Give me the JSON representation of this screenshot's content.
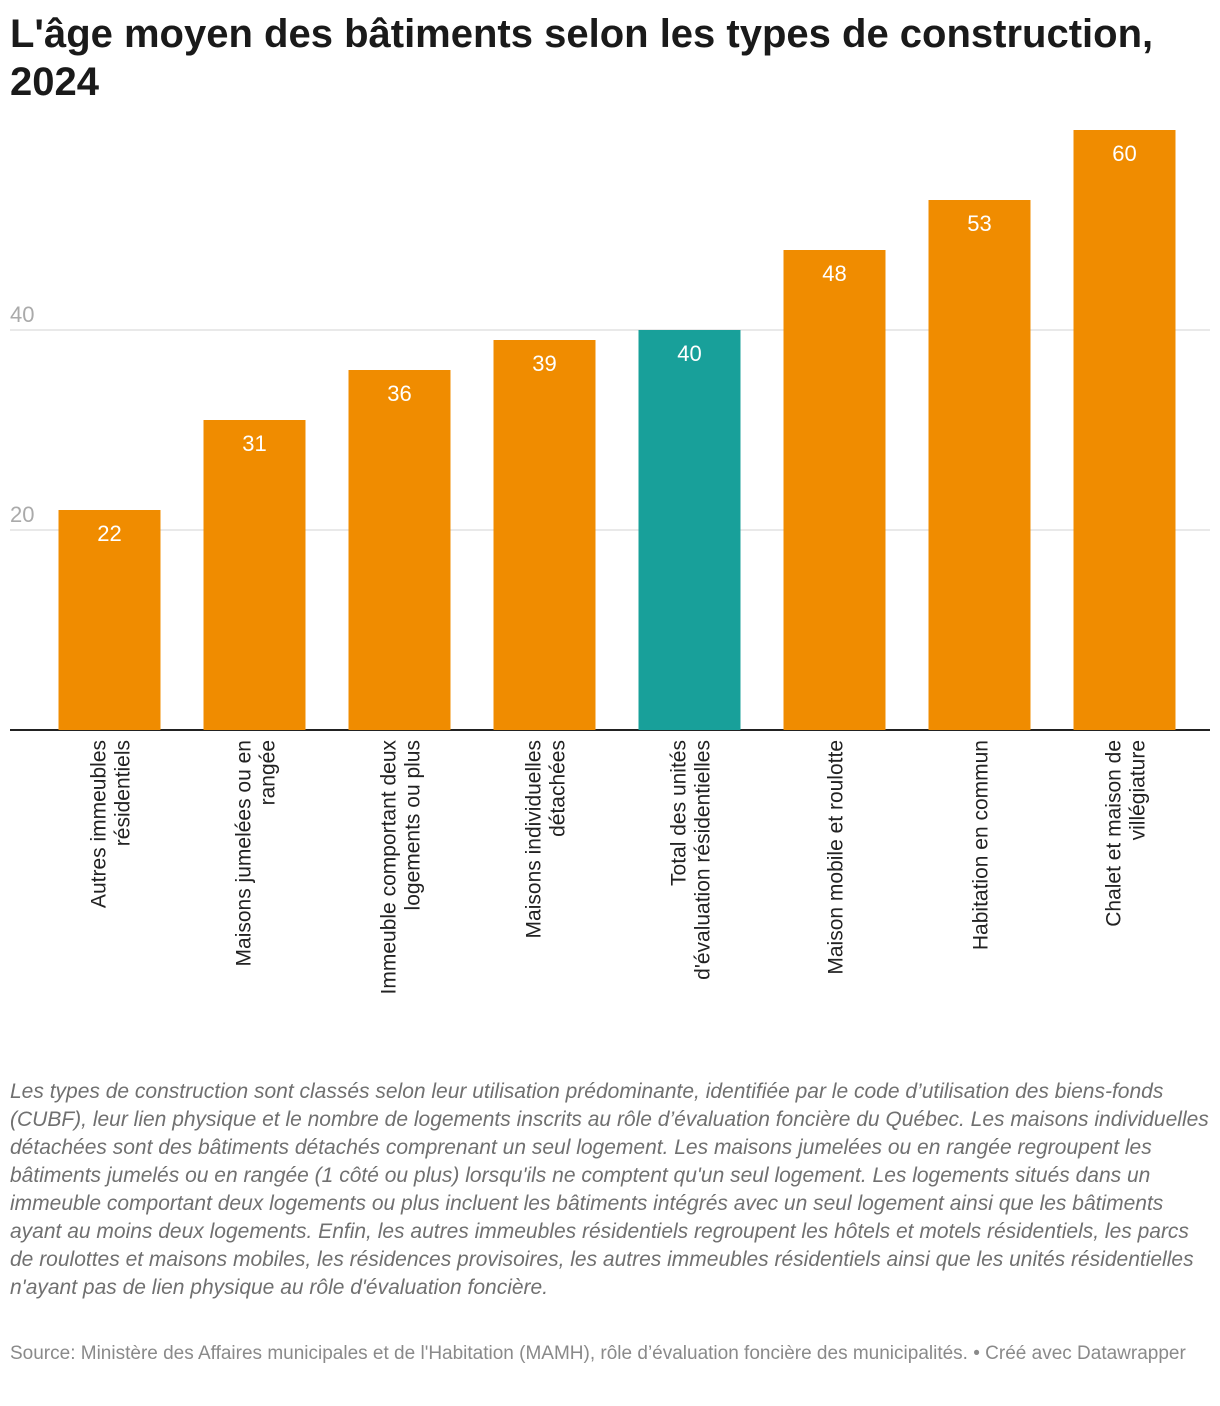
{
  "title": "L'âge moyen des bâtiments selon les types de construction, 2024",
  "colors": {
    "default_bar": "#f08c00",
    "highlight_bar": "#18a09a",
    "grid": "#e2e2e2",
    "axis": "#222222"
  },
  "chart_data": {
    "type": "bar",
    "title": "L'âge moyen des bâtiments selon les types de construction, 2024",
    "categories": [
      [
        "Autres immeubles",
        "résidentiels"
      ],
      [
        "Maisons jumelées ou en",
        "rangée"
      ],
      [
        "Immeuble comportant deux",
        "logements ou plus"
      ],
      [
        "Maisons individuelles",
        "détachées"
      ],
      [
        "Total des unités",
        "d'évaluation résidentielles"
      ],
      [
        "Maison mobile et roulotte"
      ],
      [
        "Habitation en commun"
      ],
      [
        "Chalet et maison de",
        "villégiature"
      ]
    ],
    "values": [
      22,
      31,
      36,
      39,
      40,
      48,
      53,
      60
    ],
    "value_labels": [
      "22",
      "31",
      "36",
      "39",
      "40",
      "48",
      "53",
      "60"
    ],
    "highlight_index": 4,
    "yticks": [
      20,
      40
    ],
    "ytick_labels": [
      "20",
      "40"
    ],
    "ylim": [
      0,
      60
    ],
    "grid": true,
    "xlabel": "",
    "ylabel": ""
  },
  "notes": "Les types de construction sont classés selon leur utilisation prédominante, identifiée par le code d’utilisation des biens-fonds (CUBF), leur lien physique et le nombre de logements inscrits au rôle d’évaluation foncière du Québec. Les maisons individuelles détachées sont des bâtiments détachés comprenant un seul logement. Les maisons jumelées ou en rangée regroupent les bâtiments jumelés ou en rangée (1 côté ou plus) lorsqu'ils ne comptent qu'un seul logement. Les logements situés dans un immeuble comportant deux logements ou plus incluent les bâtiments intégrés avec un seul logement ainsi que les bâtiments ayant au moins deux logements. Enfin, les autres immeubles résidentiels regroupent les hôtels et motels résidentiels, les parcs de roulottes et maisons mobiles, les résidences provisoires, les autres immeubles résidentiels ainsi que les unités résidentielles n'ayant pas de lien physique au rôle d'évaluation foncière.",
  "source": "Source: Ministère des Affaires municipales et de l'Habitation (MAMH), rôle d’évaluation foncière des municipalités. • Créé avec Datawrapper"
}
